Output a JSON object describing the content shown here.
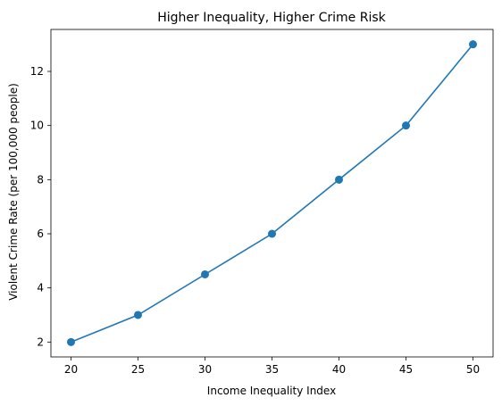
{
  "chart_data": {
    "type": "line",
    "title": "Higher Inequality, Higher Crime Risk",
    "xlabel": "Income Inequality Index",
    "ylabel": "Violent Crime Rate (per 100,000 people)",
    "x": [
      20,
      25,
      30,
      35,
      40,
      45,
      50
    ],
    "y": [
      2,
      3,
      4.5,
      6,
      8,
      10,
      13
    ],
    "xlim": [
      18.5,
      51.5
    ],
    "ylim": [
      1.45,
      13.55
    ],
    "xticks": [
      20,
      25,
      30,
      35,
      40,
      45,
      50
    ],
    "yticks": [
      2,
      4,
      6,
      8,
      10,
      12
    ],
    "grid": false,
    "marker": "circle",
    "line_color": "#1f77b4"
  }
}
